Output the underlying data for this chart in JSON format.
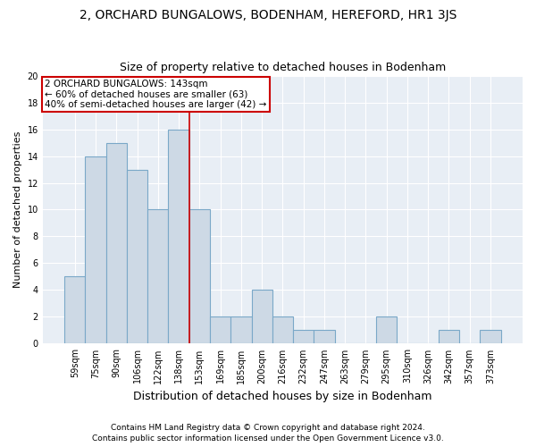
{
  "title": "2, ORCHARD BUNGALOWS, BODENHAM, HEREFORD, HR1 3JS",
  "subtitle": "Size of property relative to detached houses in Bodenham",
  "xlabel": "Distribution of detached houses by size in Bodenham",
  "ylabel": "Number of detached properties",
  "categories": [
    "59sqm",
    "75sqm",
    "90sqm",
    "106sqm",
    "122sqm",
    "138sqm",
    "153sqm",
    "169sqm",
    "185sqm",
    "200sqm",
    "216sqm",
    "232sqm",
    "247sqm",
    "263sqm",
    "279sqm",
    "295sqm",
    "310sqm",
    "326sqm",
    "342sqm",
    "357sqm",
    "373sqm"
  ],
  "values": [
    5,
    14,
    15,
    13,
    10,
    16,
    10,
    2,
    2,
    4,
    2,
    1,
    1,
    0,
    0,
    2,
    0,
    0,
    1,
    0,
    1
  ],
  "bar_color": "#cdd9e5",
  "bar_edge_color": "#7aa8c8",
  "annotation_line1": "2 ORCHARD BUNGALOWS: 143sqm",
  "annotation_line2": "← 60% of detached houses are smaller (63)",
  "annotation_line3": "40% of semi-detached houses are larger (42) →",
  "annotation_box_color": "#cc0000",
  "ref_line_color": "#cc0000",
  "ylim": [
    0,
    20
  ],
  "yticks": [
    0,
    2,
    4,
    6,
    8,
    10,
    12,
    14,
    16,
    18,
    20
  ],
  "footer1": "Contains HM Land Registry data © Crown copyright and database right 2024.",
  "footer2": "Contains public sector information licensed under the Open Government Licence v3.0.",
  "fig_bg_color": "#ffffff",
  "plot_bg_color": "#e8eef5",
  "grid_color": "#ffffff",
  "title_fontsize": 10,
  "subtitle_fontsize": 9,
  "ylabel_fontsize": 8,
  "xlabel_fontsize": 9,
  "tick_fontsize": 7,
  "annotation_fontsize": 7.5,
  "footer_fontsize": 6.5
}
